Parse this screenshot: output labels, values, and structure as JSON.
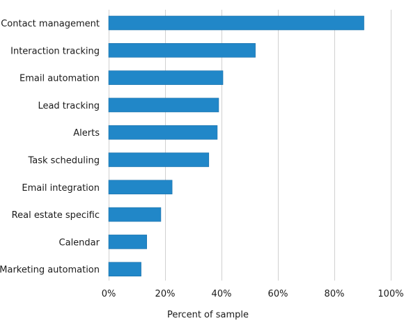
{
  "chart_data": {
    "type": "bar",
    "orientation": "horizontal",
    "categories": [
      "Contact management",
      "Interaction tracking",
      "Email automation",
      "Lead tracking",
      "Alerts",
      "Task scheduling",
      "Email integration",
      "Real estate specific",
      "Calendar",
      "Marketing automation"
    ],
    "values": [
      90.5,
      52,
      40.5,
      39,
      38.5,
      35.5,
      22.5,
      18.5,
      13.5,
      11.5
    ],
    "xlabel": "Percent of sample",
    "ylabel": "",
    "xlim": [
      0,
      100
    ],
    "ticks": [
      0,
      20,
      40,
      60,
      80,
      100
    ],
    "tick_labels": [
      "0%",
      "20%",
      "40%",
      "60%",
      "80%",
      "100%"
    ],
    "grid": "vertical",
    "bar_color": "#2187c8"
  }
}
